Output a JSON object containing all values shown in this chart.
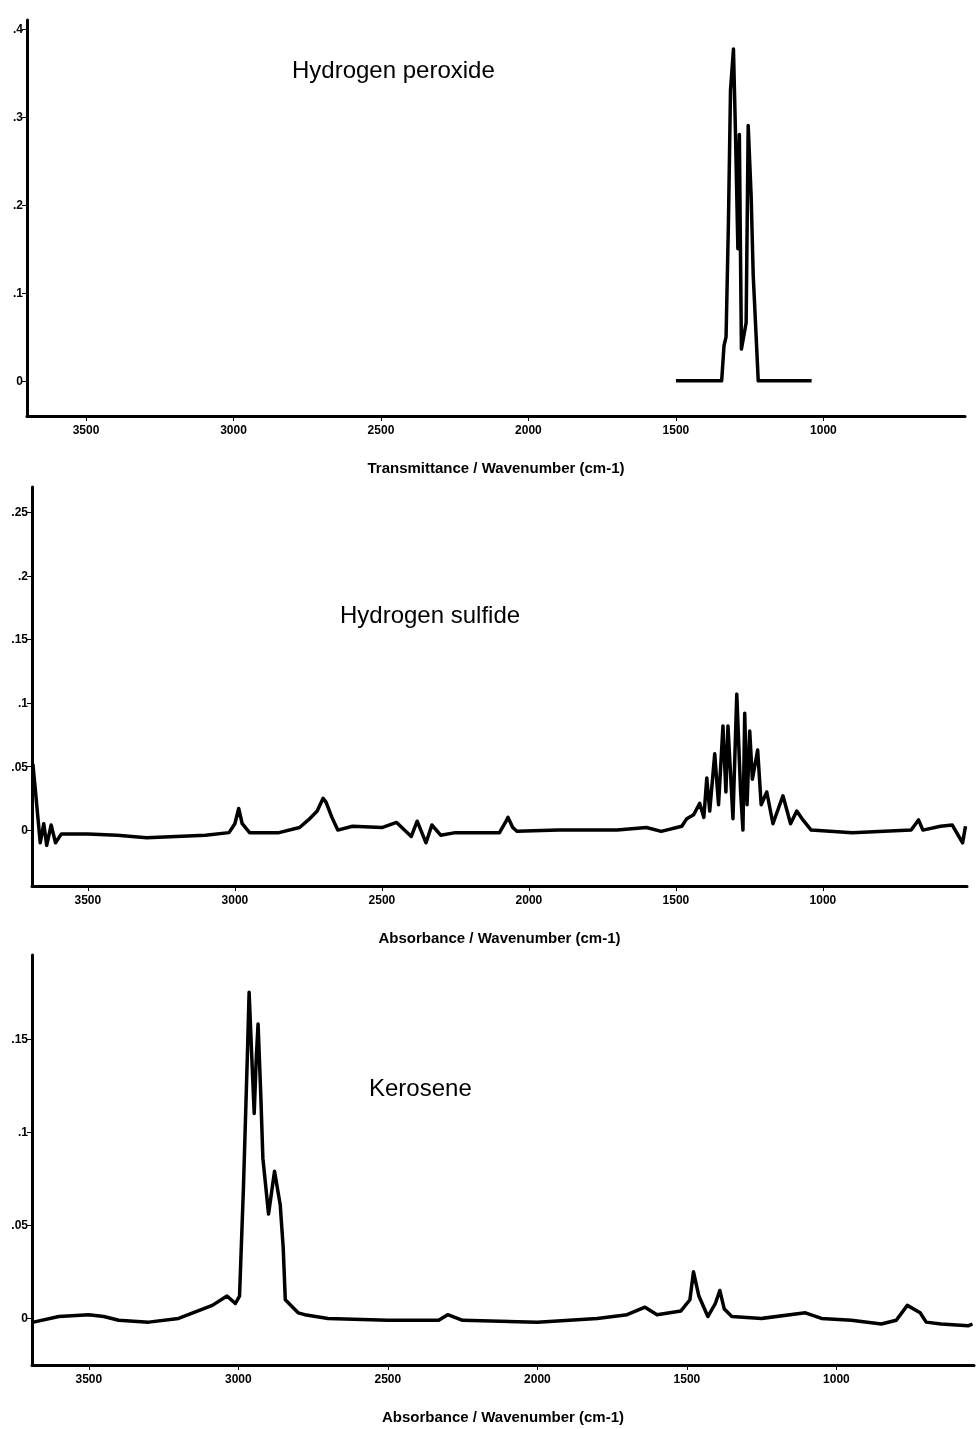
{
  "chart_data": [
    {
      "type": "line",
      "title": "Hydrogen peroxide",
      "xlabel": "Transmittance / Wavenumber (cm-1)",
      "color": "#000000",
      "marker": "none",
      "xlim": [
        3700,
        520
      ],
      "xticks": [
        3500,
        3000,
        2500,
        2000,
        1500,
        1000
      ],
      "ylim": [
        -0.04,
        0.41
      ],
      "yticks": [
        {
          "value": 0,
          "label": "0"
        },
        {
          "value": 0.1,
          "label": ".1"
        },
        {
          "value": 0.2,
          "label": ".2"
        },
        {
          "value": 0.3,
          "label": ".3"
        },
        {
          "value": 0.4,
          "label": ".4"
        }
      ],
      "x": [
        1500,
        1345,
        1337,
        1330,
        1322,
        1315,
        1305,
        1298,
        1290,
        1285,
        1278,
        1262,
        1255,
        1245,
        1238,
        1228,
        1221,
        1040
      ],
      "values": [
        0,
        0,
        0.04,
        0.05,
        0.18,
        0.33,
        0.377,
        0.28,
        0.15,
        0.28,
        0.036,
        0.066,
        0.29,
        0.21,
        0.12,
        0.05,
        0,
        0
      ]
    },
    {
      "type": "line",
      "title": "Hydrogen sulfide",
      "xlabel": "Absorbance / Wavenumber (cm-1)",
      "color": "#000000",
      "marker": "none",
      "xlim": [
        3690,
        510
      ],
      "xticks": [
        3500,
        3000,
        2500,
        2000,
        1500,
        1000
      ],
      "ylim": [
        -0.044,
        0.27
      ],
      "yticks": [
        {
          "value": 0,
          "label": "0"
        },
        {
          "value": 0.05,
          "label": ".05"
        },
        {
          "value": 0.1,
          "label": ".1"
        },
        {
          "value": 0.15,
          "label": ".15"
        },
        {
          "value": 0.2,
          "label": ".2"
        },
        {
          "value": 0.25,
          "label": ".25"
        }
      ],
      "x": [
        3687,
        3678,
        3670,
        3662,
        3650,
        3640,
        3625,
        3610,
        3590,
        3500,
        3400,
        3300,
        3200,
        3100,
        3020,
        3000,
        2987,
        2975,
        2950,
        2850,
        2780,
        2750,
        2720,
        2700,
        2690,
        2670,
        2650,
        2600,
        2500,
        2450,
        2400,
        2380,
        2350,
        2330,
        2300,
        2250,
        2100,
        2080,
        2071,
        2055,
        2040,
        1900,
        1700,
        1600,
        1550,
        1480,
        1463,
        1440,
        1419,
        1405,
        1395,
        1385,
        1368,
        1355,
        1340,
        1330,
        1323,
        1306,
        1293,
        1280,
        1272,
        1266,
        1258,
        1249,
        1240,
        1222,
        1210,
        1191,
        1170,
        1136,
        1110,
        1089,
        1068,
        1040,
        900,
        700,
        675,
        660,
        600,
        560,
        525,
        515
      ],
      "values": [
        0.052,
        0.03,
        0.01,
        -0.01,
        0.005,
        -0.012,
        0.004,
        -0.01,
        -0.003,
        -0.003,
        -0.004,
        -0.006,
        -0.005,
        -0.004,
        -0.002,
        0.005,
        0.017,
        0.005,
        -0.002,
        -0.002,
        0.002,
        0.008,
        0.015,
        0.025,
        0.022,
        0.01,
        0,
        0.003,
        0.002,
        0.006,
        -0.005,
        0.007,
        -0.01,
        0.004,
        -0.004,
        -0.002,
        -0.002,
        0.006,
        0.01,
        0.002,
        -0.001,
        0,
        0,
        0.002,
        -0.001,
        0.003,
        0.009,
        0.012,
        0.021,
        0.01,
        0.041,
        0.015,
        0.06,
        0.02,
        0.082,
        0.03,
        0.082,
        0.009,
        0.107,
        0.03,
        0,
        0.092,
        0.02,
        0.078,
        0.04,
        0.063,
        0.02,
        0.03,
        0.005,
        0.027,
        0.005,
        0.015,
        0.008,
        0,
        -0.002,
        0,
        0.008,
        0,
        0.003,
        0.004,
        -0.01,
        0.003
      ]
    },
    {
      "type": "line",
      "title": "Kerosene",
      "xlabel": "Absorbance / Wavenumber (cm-1)",
      "color": "#000000",
      "marker": "none",
      "xlim": [
        3690,
        540
      ],
      "xticks": [
        3500,
        3000,
        2500,
        2000,
        1500,
        1000
      ],
      "ylim": [
        -0.025,
        0.195
      ],
      "yticks": [
        {
          "value": 0,
          "label": "0"
        },
        {
          "value": 0.05,
          "label": ".05"
        },
        {
          "value": 0.1,
          "label": ".1"
        },
        {
          "value": 0.15,
          "label": ".15"
        }
      ],
      "x": [
        3685,
        3600,
        3500,
        3450,
        3400,
        3300,
        3200,
        3087,
        3038,
        3010,
        2996,
        2983,
        2970,
        2964,
        2955,
        2947,
        2940,
        2934,
        2925,
        2918,
        2899,
        2879,
        2860,
        2850,
        2843,
        2800,
        2778,
        2700,
        2500,
        2330,
        2300,
        2250,
        2000,
        1800,
        1700,
        1640,
        1600,
        1520,
        1490,
        1478,
        1460,
        1430,
        1405,
        1390,
        1375,
        1350,
        1250,
        1104,
        1050,
        950,
        850,
        800,
        763,
        720,
        700,
        650,
        560,
        545
      ],
      "values": [
        -0.002,
        0.001,
        0.002,
        0.001,
        -0.001,
        -0.002,
        0,
        0.007,
        0.012,
        0.008,
        0.012,
        0.07,
        0.14,
        0.175,
        0.14,
        0.11,
        0.14,
        0.158,
        0.12,
        0.086,
        0.056,
        0.079,
        0.061,
        0.038,
        0.01,
        0.003,
        0.002,
        0,
        -0.001,
        -0.001,
        0.002,
        -0.001,
        -0.002,
        0,
        0.002,
        0.006,
        0.002,
        0.004,
        0.01,
        0.025,
        0.012,
        0.001,
        0.008,
        0.015,
        0.005,
        0.001,
        0,
        0.003,
        0,
        -0.001,
        -0.003,
        -0.001,
        0.007,
        0.003,
        -0.002,
        -0.003,
        -0.004,
        -0.003
      ]
    }
  ]
}
